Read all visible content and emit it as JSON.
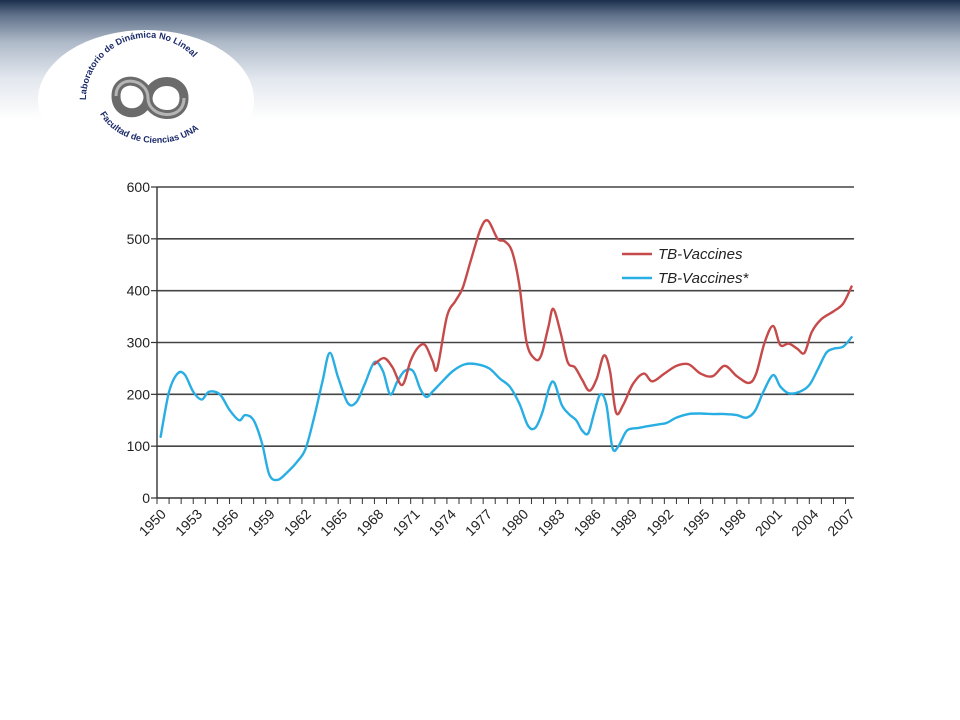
{
  "logo": {
    "text_top": "Laboratorio de Dinámica No Lineal",
    "text_bottom": "Facultad de Ciencias UNAM"
  },
  "colors": {
    "series_1": "#c64a4a",
    "series_2": "#29aee3",
    "grid": "#444444",
    "axis": "#333333"
  },
  "chart_data": {
    "type": "line",
    "title": "",
    "xlabel": "",
    "ylabel": "",
    "xlim": [
      1950,
      2007.7
    ],
    "ylim": [
      0,
      600
    ],
    "y_ticks": [
      0,
      100,
      200,
      300,
      400,
      500,
      600
    ],
    "x_tick_labels": [
      "1950",
      "1953",
      "1956",
      "1959",
      "1962",
      "1965",
      "1968",
      "1971",
      "1974",
      "1977",
      "1980",
      "1983",
      "1986",
      "1989",
      "1992",
      "1995",
      "1998",
      "2001",
      "2004",
      "2007"
    ],
    "grid": "horizontal",
    "legend_position": "top-right",
    "series": [
      {
        "name": "TB-Vaccines",
        "color": "#c64a4a",
        "x": [
          1968,
          1968.8,
          1969.5,
          1970.3,
          1971,
          1971.6,
          1972.2,
          1972.8,
          1973.2,
          1974,
          1974.7,
          1975.3,
          1976,
          1976.8,
          1977.4,
          1978.2,
          1978.8,
          1979.4,
          1980,
          1980.6,
          1981.3,
          1981.8,
          1982.4,
          1982.8,
          1983.4,
          1984,
          1984.6,
          1985.2,
          1985.8,
          1986.4,
          1987,
          1987.5,
          1988,
          1988.6,
          1989.4,
          1990.3,
          1991,
          1992,
          1993,
          1994,
          1995,
          1996,
          1997,
          1998,
          1999,
          1999.6,
          2000.3,
          2001,
          2001.6,
          2002.3,
          2003,
          2003.6,
          2004.2,
          2005,
          2006,
          2006.8,
          2007.5
        ],
        "y": [
          258,
          270,
          252,
          218,
          265,
          290,
          295,
          265,
          250,
          350,
          380,
          405,
          460,
          520,
          535,
          500,
          495,
          475,
          410,
          300,
          268,
          275,
          330,
          365,
          320,
          262,
          252,
          228,
          207,
          230,
          275,
          245,
          165,
          180,
          220,
          240,
          225,
          240,
          255,
          258,
          240,
          235,
          255,
          235,
          222,
          240,
          300,
          332,
          295,
          298,
          288,
          280,
          320,
          345,
          360,
          375,
          408
        ]
      },
      {
        "name": "TB-Vaccines*",
        "color": "#29aee3",
        "x": [
          1950.3,
          1951,
          1951.7,
          1952.3,
          1953,
          1953.7,
          1954.3,
          1955.2,
          1956,
          1956.8,
          1957.3,
          1958,
          1958.7,
          1959.3,
          1960,
          1960.8,
          1961.6,
          1962.3,
          1963,
          1963.7,
          1964.3,
          1965,
          1965.8,
          1966.5,
          1967.2,
          1968,
          1968.7,
          1969.3,
          1969.9,
          1970.5,
          1971.2,
          1971.8,
          1972.3,
          1972.8,
          1973.5,
          1974.5,
          1975.5,
          1976.5,
          1977.5,
          1978.4,
          1979.2,
          1980,
          1980.7,
          1981.3,
          1981.9,
          1982.5,
          1982.9,
          1983.5,
          1984.1,
          1984.7,
          1985.2,
          1985.7,
          1986.2,
          1986.7,
          1987.2,
          1987.7,
          1988.2,
          1988.9,
          1989.8,
          1990.5,
          1991.5,
          1992.2,
          1993,
          1994,
          1995,
          1996,
          1997,
          1998,
          1998.8,
          1999.5,
          2000.2,
          2001,
          2001.6,
          2002.3,
          2003.2,
          2004,
          2004.7,
          2005.4,
          2006,
          2006.8,
          2007.5
        ],
        "y": [
          118,
          205,
          240,
          238,
          205,
          190,
          205,
          200,
          170,
          150,
          160,
          150,
          105,
          45,
          35,
          50,
          70,
          95,
          155,
          225,
          280,
          232,
          183,
          185,
          220,
          262,
          245,
          200,
          225,
          245,
          245,
          210,
          195,
          205,
          222,
          245,
          258,
          258,
          250,
          230,
          215,
          182,
          140,
          135,
          165,
          215,
          222,
          180,
          162,
          150,
          130,
          125,
          165,
          200,
          180,
          97,
          100,
          130,
          135,
          138,
          142,
          145,
          155,
          162,
          163,
          162,
          162,
          160,
          155,
          168,
          205,
          237,
          215,
          202,
          205,
          218,
          248,
          280,
          288,
          292,
          310
        ]
      }
    ]
  }
}
